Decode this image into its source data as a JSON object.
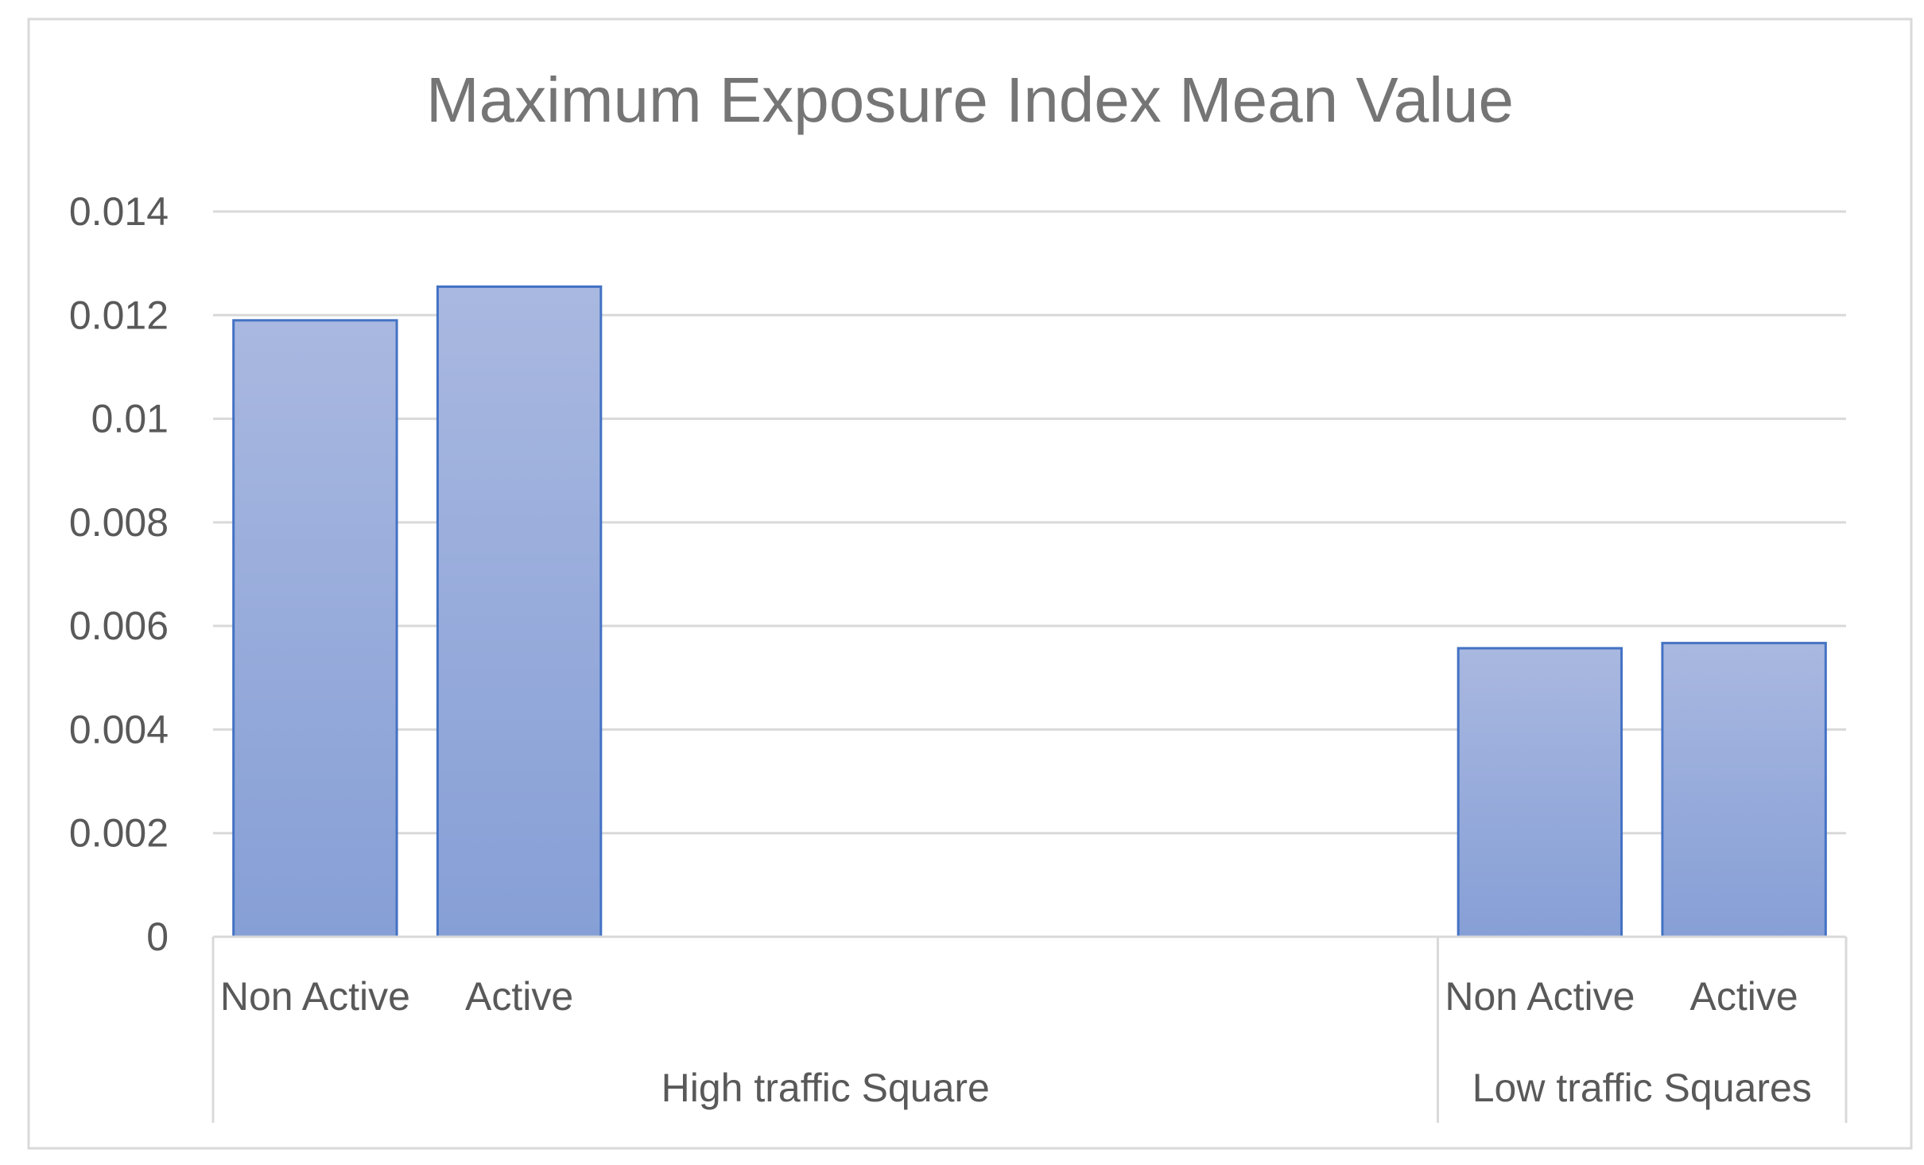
{
  "chart_data": {
    "type": "bar",
    "title": "Maximum Exposure Index Mean Value",
    "xlabel": "",
    "ylabel": "",
    "ylim": [
      0,
      0.014
    ],
    "y_ticks": [
      "0",
      "0.002",
      "0.004",
      "0.006",
      "0.008",
      "0.01",
      "0.012",
      "0.014"
    ],
    "groups": [
      {
        "name": "High traffic Square",
        "categories": [
          "Non Active",
          "Active"
        ],
        "values": [
          0.0119,
          0.01255
        ]
      },
      {
        "name": "Low traffic Squares",
        "categories": [
          "Non Active",
          "Active"
        ],
        "values": [
          0.00557,
          0.00567
        ]
      }
    ],
    "grid": true,
    "legend": "none",
    "colors": {
      "bar_top": "#a9b8e0",
      "bar_bottom": "#869fd6",
      "bar_border": "#4472c4",
      "grid": "#d9d9d9",
      "text": "#595959",
      "title": "#757575"
    }
  }
}
